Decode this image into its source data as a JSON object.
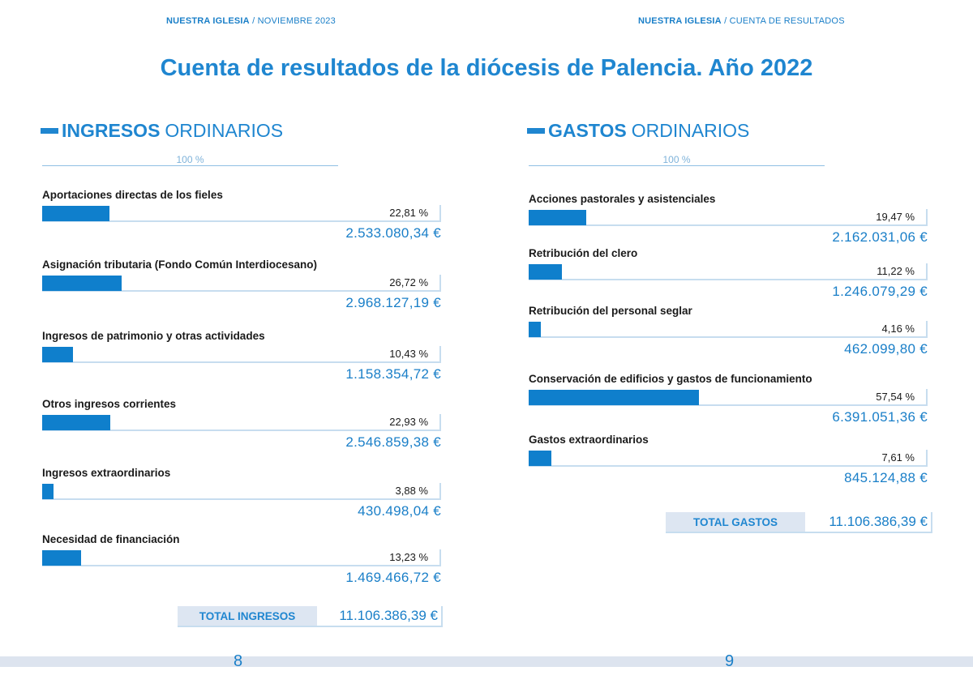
{
  "header": {
    "left": {
      "brand": "NUESTRA IGLESIA",
      "rest": " / NOVIEMBRE 2023"
    },
    "right": {
      "brand": "NUESTRA IGLESIA",
      "rest": " / CUENTA DE RESULTADOS"
    }
  },
  "title": "Cuenta de resultados de la diócesis de Palencia. Año 2022",
  "pages": {
    "left": "8",
    "right": "9"
  },
  "colors": {
    "accent": "#1f86d0",
    "bar": "#0f7fcc",
    "total_band": "#dde6f2",
    "rule": "#c7ddef"
  },
  "chart_data": [
    {
      "type": "bar",
      "title_bold": "INGRESOS",
      "title_light": "ORDINARIOS",
      "scale_label": "100 %",
      "categories": [
        "Aportaciones directas de los fieles",
        "Asignación tributaria (Fondo Común Interdiocesano)",
        "Ingresos de patrimonio y otras actividades",
        "Otros ingresos corrientes",
        "Ingresos extraordinarios",
        "Necesidad de financiación"
      ],
      "values": [
        22.81,
        26.72,
        10.43,
        22.93,
        3.88,
        13.23
      ],
      "value_labels": [
        "22,81 %",
        "26,72 %",
        "10,43 %",
        "22,93 %",
        "3,88 %",
        "13,23 %"
      ],
      "amounts": [
        "2.533.080,34 €",
        "2.968.127,19 €",
        "1.158.354,72 €",
        "2.546.859,38 €",
        "430.498,04 €",
        "1.469.466,72 €"
      ],
      "xlim": [
        0,
        100
      ],
      "total_label": "TOTAL INGRESOS",
      "total_value": "11.106.386,39 €"
    },
    {
      "type": "bar",
      "title_bold": "GASTOS",
      "title_light": "ORDINARIOS",
      "scale_label": "100 %",
      "categories": [
        "Acciones pastorales y asistenciales",
        "Retribución del clero",
        "Retribución del personal seglar",
        "Conservación de edificios y gastos de funcionamiento",
        "Gastos extraordinarios"
      ],
      "values": [
        19.47,
        11.22,
        4.16,
        57.54,
        7.61
      ],
      "value_labels": [
        "19,47 %",
        "11,22 %",
        "4,16 %",
        "57,54 %",
        "7,61 %"
      ],
      "amounts": [
        "2.162.031,06 €",
        "1.246.079,29 €",
        "462.099,80 €",
        "6.391.051,36 €",
        "845.124,88 €"
      ],
      "xlim": [
        0,
        100
      ],
      "total_label": "TOTAL GASTOS",
      "total_value": "11.106.386,39 €"
    }
  ]
}
